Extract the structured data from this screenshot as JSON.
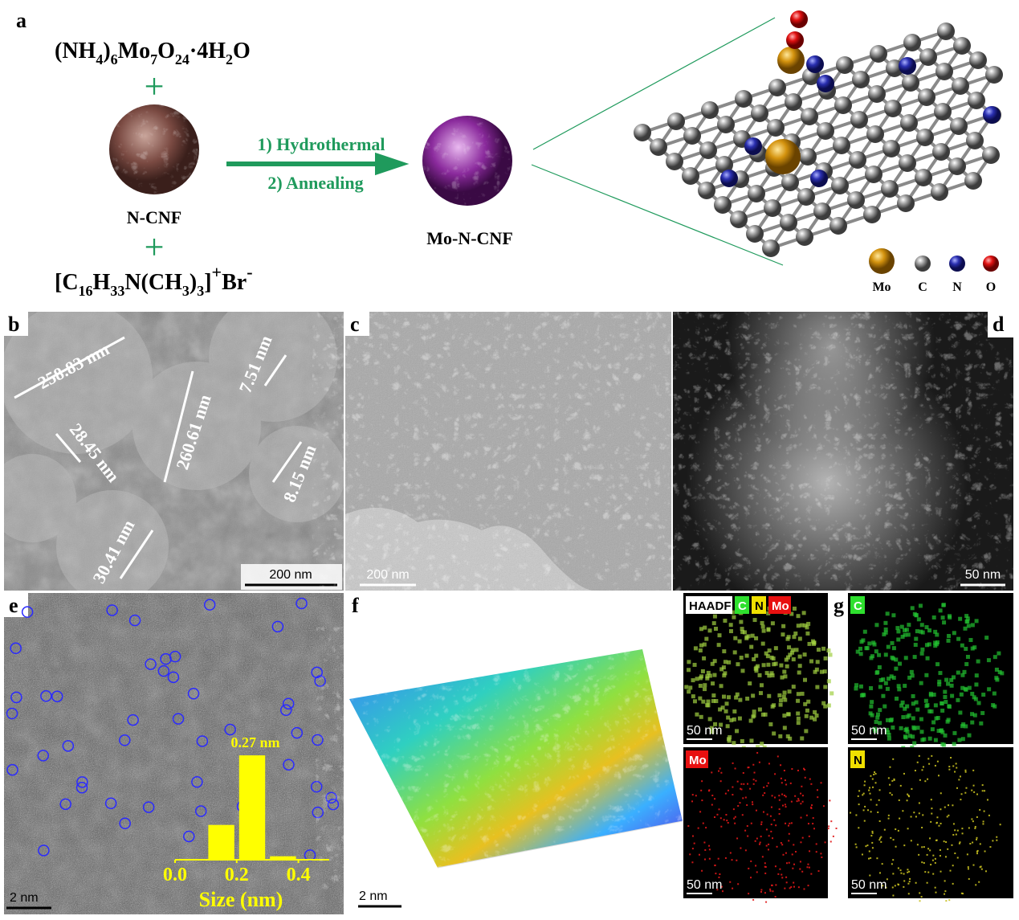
{
  "panels": {
    "a": {
      "label": "a",
      "precursor": [
        "(NH",
        "4",
        ")",
        "6",
        "Mo",
        "7",
        "O",
        "24",
        "·4H",
        "2",
        "O"
      ],
      "operator": "+",
      "support": "N-CNF",
      "surfactant": [
        "[C",
        "16",
        "H",
        "33",
        "N(CH",
        "3",
        ")",
        "3",
        "]",
        "+",
        "Br",
        "-"
      ],
      "step_1": "1) Hydrothermal",
      "step_2": "2) Annealing",
      "product": "Mo-N-CNF",
      "legend": [
        "Mo",
        "C",
        "N",
        "O"
      ]
    },
    "b": {
      "label": "b",
      "measurements": [
        "258.83 nm",
        "28.45 nm",
        "260.61 nm",
        "7.51 nm",
        "8.15 nm",
        "30.41 nm"
      ],
      "scale_bar": "200 nm"
    },
    "c": {
      "label": "c",
      "scale_bar": "200 nm"
    },
    "d": {
      "label": "d",
      "scale_bar": "50 nm"
    },
    "e": {
      "label": "e",
      "scale_bar": "2 nm"
    },
    "f": {
      "label": "f",
      "scale_bar": "2 nm"
    },
    "g": {
      "label": "g",
      "maps": [
        {
          "tags": [
            "HAADF",
            "C",
            "N",
            "Mo"
          ],
          "scale_bar": "50 nm"
        },
        {
          "tags": [
            "C"
          ],
          "scale_bar": "50 nm"
        },
        {
          "tags": [
            "Mo"
          ],
          "scale_bar": "50 nm"
        },
        {
          "tags": [
            "N"
          ],
          "scale_bar": "50 nm"
        }
      ]
    }
  },
  "chart_data": {
    "type": "histogram",
    "annotation": "0.27 nm",
    "x_label": "Size (nm)",
    "bins": [
      0.1,
      0.2,
      0.3,
      0.4
    ],
    "values": [
      10,
      30,
      1
    ],
    "color": "#ffff00",
    "xlim": [
      0,
      0.5
    ],
    "xticks": [
      {
        "value": 0,
        "label": "0.0"
      },
      0.2,
      0.4
    ]
  }
}
